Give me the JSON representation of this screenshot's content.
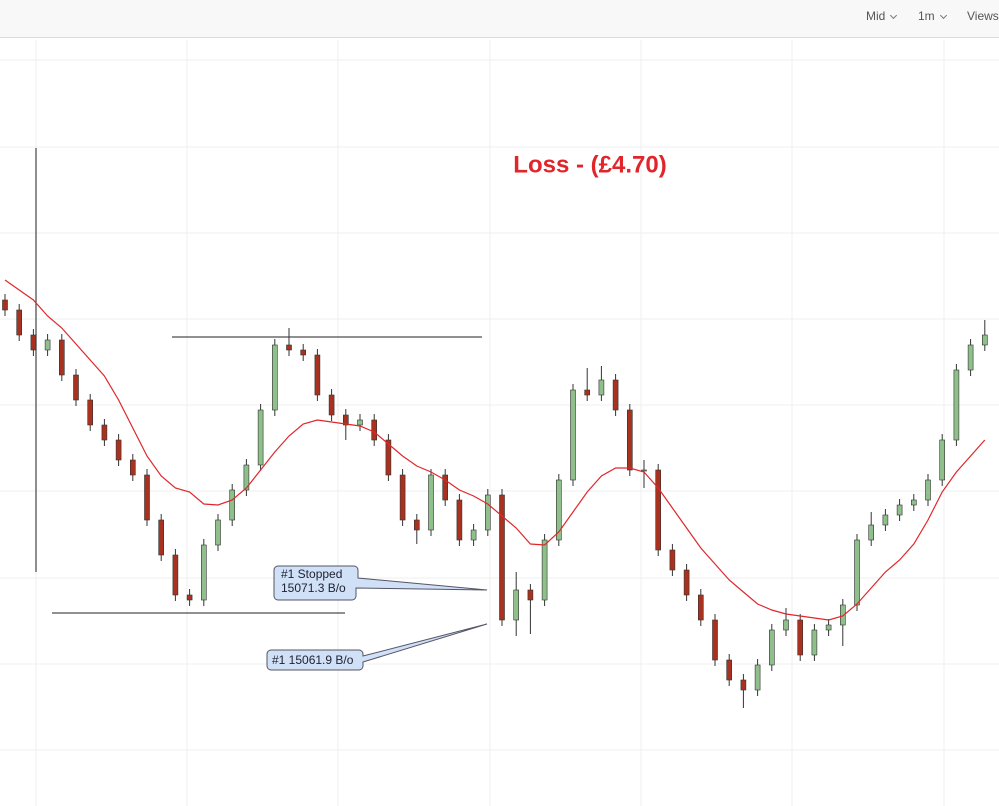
{
  "toolbar": {
    "items": [
      "Mid",
      "1m",
      "Views"
    ]
  },
  "chart_data": {
    "type": "candlestick",
    "annotation": "Loss - (£4.70)",
    "callouts": [
      {
        "line1": "#1 Stopped",
        "line2": "15071.3 B/o"
      },
      {
        "line1": "#1 15061.9 B/o"
      }
    ],
    "ylim": [
      15013.5,
      15205
    ],
    "up_color": "#8fbf8a",
    "down_color": "#a8321f",
    "ma_color": "#e0262b",
    "levels": [
      15130.75,
      15061.75
    ],
    "open": [
      15140,
      15137.5,
      15131.25,
      15127.5,
      15130,
      15121.25,
      15115,
      15108.75,
      15105,
      15100,
      15096.25,
      15085,
      15076.25,
      15066.25,
      15065,
      15078.75,
      15085,
      15092.5,
      15098.75,
      15112.5,
      15128.75,
      15127.5,
      15126.25,
      15116.25,
      15111.25,
      15108.75,
      15110,
      15105,
      15096.25,
      15085,
      15082.5,
      15096.25,
      15090,
      15080,
      15082.5,
      15091.25,
      15060,
      15067.5,
      15065,
      15080,
      15095,
      15117.5,
      15116.25,
      15120,
      15112.5,
      15097.5,
      15097.5,
      15077.5,
      15072.5,
      15066.25,
      15060,
      15050,
      15045,
      15042.5,
      15048.75,
      15057.5,
      15060,
      15051.25,
      15057.5,
      15058.75,
      15063.75,
      15080,
      15083.75,
      15086.25,
      15088.75,
      15090,
      15095,
      15105,
      15122.5,
      15128.75
    ],
    "high": [
      15141.5,
      15139,
      15132.75,
      15131.5,
      15131.5,
      15122.75,
      15116.5,
      15110.25,
      15106.5,
      15101.5,
      15097.75,
      15086.5,
      15077.75,
      15067.75,
      15080.25,
      15086.5,
      15094,
      15100.25,
      15114,
      15130.25,
      15133,
      15129,
      15127.75,
      15117.75,
      15112.75,
      15111.5,
      15111.5,
      15106.5,
      15097.75,
      15086.5,
      15097.75,
      15097.75,
      15091.5,
      15084,
      15092.75,
      15092.75,
      15072,
      15069,
      15081.5,
      15096.5,
      15119,
      15123,
      15123.5,
      15121.5,
      15114,
      15100,
      15099,
      15079,
      15074,
      15067.75,
      15061.5,
      15051.5,
      15046.5,
      15050.25,
      15059,
      15063,
      15061.5,
      15059,
      15060.25,
      15065.25,
      15081.5,
      15087,
      15087.75,
      15090.25,
      15091.5,
      15096.5,
      15106.5,
      15124,
      15130.25,
      15135
    ],
    "low": [
      15136,
      15129.75,
      15126,
      15126,
      15119.75,
      15113.5,
      15107.25,
      15103.5,
      15098.5,
      15094.75,
      15083.5,
      15074.75,
      15064.75,
      15063.5,
      15063.5,
      15077.25,
      15083.5,
      15091,
      15097.25,
      15111,
      15126,
      15124.75,
      15114.75,
      15109.75,
      15105,
      15107.25,
      15103.5,
      15094.75,
      15083.5,
      15079,
      15081,
      15088.5,
      15078.5,
      15078.5,
      15081,
      15058.5,
      15056,
      15056.5,
      15063.5,
      15078.5,
      15093.5,
      15114.75,
      15114.75,
      15111,
      15096,
      15093,
      15076,
      15071,
      15064.75,
      15058.5,
      15048.5,
      15043.5,
      15038,
      15041,
      15047.25,
      15056,
      15049.75,
      15049.75,
      15056,
      15053.5,
      15062.25,
      15078.5,
      15082.25,
      15084.75,
      15087.25,
      15088.5,
      15093.5,
      15103.5,
      15121,
      15127.25
    ],
    "close": [
      15137.5,
      15131.25,
      15127.5,
      15130,
      15121.25,
      15115,
      15108.75,
      15105,
      15100,
      15096.25,
      15085,
      15076.25,
      15066.25,
      15065,
      15078.75,
      15085,
      15092.5,
      15098.75,
      15112.5,
      15128.75,
      15127.5,
      15126.25,
      15116.25,
      15111.25,
      15108.75,
      15110,
      15105,
      15096.25,
      15085,
      15082.5,
      15096.25,
      15090,
      15080,
      15082.5,
      15091.25,
      15060,
      15067.5,
      15065,
      15080,
      15095,
      15117.5,
      15116.25,
      15120,
      15112.5,
      15097.5,
      15097.5,
      15077.5,
      15072.5,
      15066.25,
      15060,
      15050,
      15045,
      15042.5,
      15048.75,
      15057.5,
      15060,
      15051.25,
      15057.5,
      15058.75,
      15063.75,
      15080,
      15083.75,
      15086.25,
      15088.75,
      15090,
      15095,
      15105,
      15122.5,
      15128.75,
      15131.25
    ],
    "ma": [
      15145,
      15142.5,
      15140,
      15136,
      15133,
      15129,
      15125,
      15121,
      15115,
      15108,
      15101,
      15096,
      15093,
      15092,
      15089,
      15088.75,
      15090,
      15093,
      15097.5,
      15102,
      15106,
      15109,
      15110,
      15109.5,
      15109,
      15108.5,
      15107,
      15104,
      15101,
      15098.5,
      15097,
      15095,
      15092.5,
      15091,
      15089,
      15086,
      15083,
      15079,
      15078.75,
      15082,
      15087,
      15092,
      15096,
      15098,
      15098,
      15097,
      15093,
      15088,
      15083,
      15078,
      15074,
      15070,
      15067,
      15064,
      15062.5,
      15061.5,
      15061,
      15060.5,
      15060,
      15061,
      15064,
      15068,
      15072,
      15075,
      15079,
      15085,
      15092,
      15097,
      15101,
      15105
    ]
  }
}
